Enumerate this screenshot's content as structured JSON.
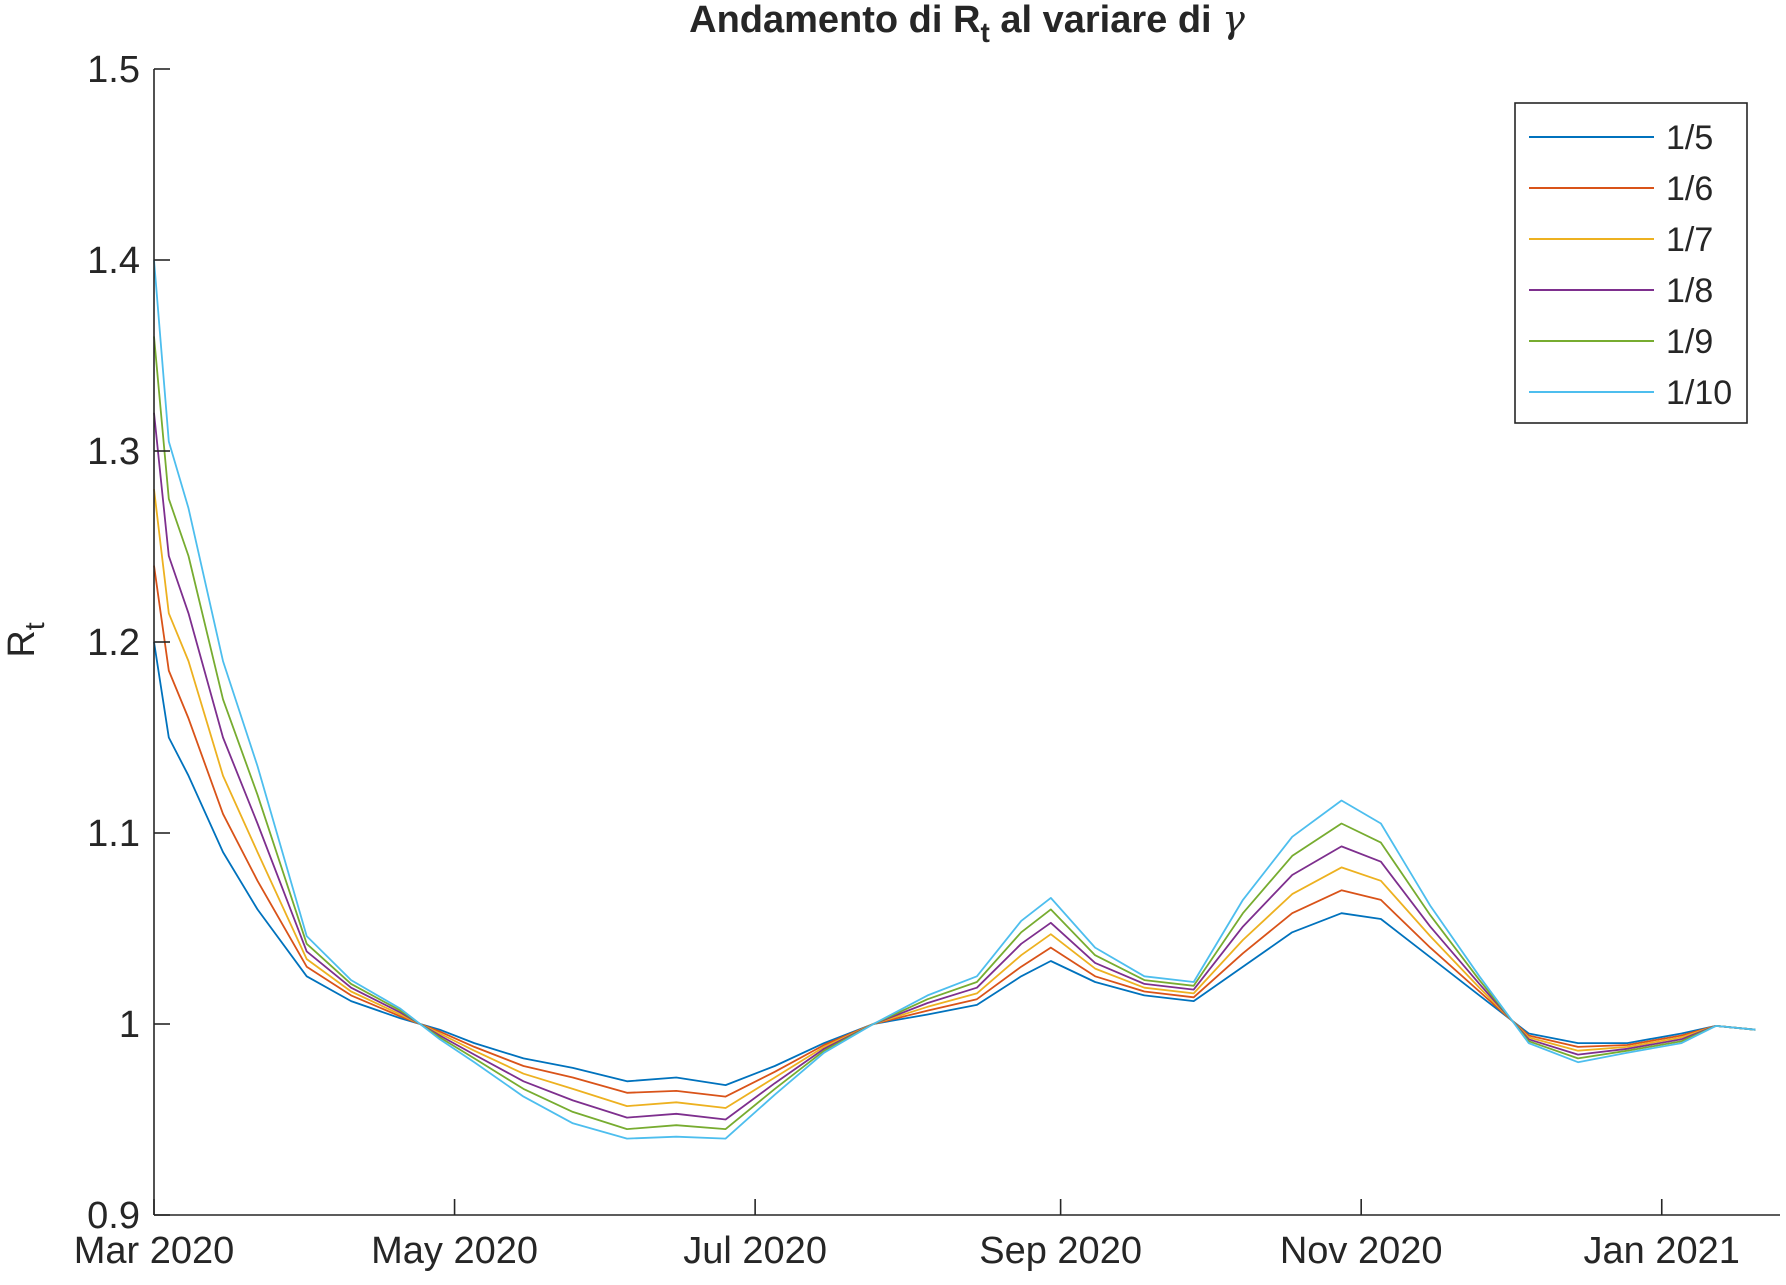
{
  "chart_data": {
    "type": "line",
    "title_main": "Andamento di R",
    "title_sub": "t",
    "title_rest": " al variare di ",
    "title_symbol": "γ",
    "ylabel_main": "R",
    "ylabel_sub": "t",
    "xlabel": "",
    "xlim": [
      "2020-03-01",
      "2021-01-25"
    ],
    "ylim": [
      0.9,
      1.5
    ],
    "grid": false,
    "legend_position": "top-right",
    "x_ticks": [
      {
        "date": "2020-03-01",
        "label": "Mar 2020"
      },
      {
        "date": "2020-05-01",
        "label": "May 2020"
      },
      {
        "date": "2020-07-01",
        "label": "Jul 2020"
      },
      {
        "date": "2020-09-01",
        "label": "Sep 2020"
      },
      {
        "date": "2020-11-01",
        "label": "Nov 2020"
      },
      {
        "date": "2021-01-01",
        "label": "Jan 2021"
      }
    ],
    "y_ticks": [
      {
        "value": 0.9,
        "label": "0.9"
      },
      {
        "value": 1.0,
        "label": "1"
      },
      {
        "value": 1.1,
        "label": "1.1"
      },
      {
        "value": 1.2,
        "label": "1.2"
      },
      {
        "value": 1.3,
        "label": "1.3"
      },
      {
        "value": 1.4,
        "label": "1.4"
      },
      {
        "value": 1.5,
        "label": "1.5"
      }
    ],
    "x": [
      "2020-03-01",
      "2020-03-04",
      "2020-03-08",
      "2020-03-15",
      "2020-03-22",
      "2020-04-01",
      "2020-04-10",
      "2020-04-20",
      "2020-04-28",
      "2020-05-05",
      "2020-05-15",
      "2020-05-25",
      "2020-06-05",
      "2020-06-15",
      "2020-06-25",
      "2020-07-05",
      "2020-07-15",
      "2020-07-25",
      "2020-08-05",
      "2020-08-15",
      "2020-08-24",
      "2020-08-30",
      "2020-09-08",
      "2020-09-18",
      "2020-09-28",
      "2020-10-08",
      "2020-10-18",
      "2020-10-28",
      "2020-11-05",
      "2020-11-15",
      "2020-11-25",
      "2020-12-05",
      "2020-12-15",
      "2020-12-25",
      "2021-01-05",
      "2021-01-12",
      "2021-01-20"
    ],
    "series": [
      {
        "name": "1/5",
        "color": "#0072BD",
        "values": [
          1.2,
          1.15,
          1.13,
          1.09,
          1.06,
          1.025,
          1.012,
          1.003,
          0.997,
          0.99,
          0.982,
          0.977,
          0.97,
          0.972,
          0.968,
          0.978,
          0.99,
          1.0,
          1.005,
          1.01,
          1.025,
          1.033,
          1.022,
          1.015,
          1.012,
          1.03,
          1.048,
          1.058,
          1.055,
          1.035,
          1.015,
          0.995,
          0.99,
          0.99,
          0.995,
          0.999,
          0.997
        ]
      },
      {
        "name": "1/6",
        "color": "#D95319",
        "values": [
          1.24,
          1.185,
          1.16,
          1.11,
          1.075,
          1.03,
          1.015,
          1.004,
          0.996,
          0.988,
          0.978,
          0.972,
          0.964,
          0.965,
          0.962,
          0.975,
          0.989,
          1.0,
          1.007,
          1.013,
          1.03,
          1.04,
          1.025,
          1.017,
          1.014,
          1.037,
          1.058,
          1.07,
          1.065,
          1.04,
          1.017,
          0.994,
          0.988,
          0.989,
          0.994,
          0.999,
          0.997
        ]
      },
      {
        "name": "1/7",
        "color": "#EDB120",
        "values": [
          1.28,
          1.215,
          1.19,
          1.13,
          1.09,
          1.034,
          1.017,
          1.005,
          0.995,
          0.986,
          0.974,
          0.966,
          0.957,
          0.959,
          0.956,
          0.972,
          0.988,
          1.0,
          1.009,
          1.016,
          1.036,
          1.047,
          1.029,
          1.019,
          1.016,
          1.044,
          1.068,
          1.082,
          1.075,
          1.046,
          1.019,
          0.993,
          0.986,
          0.988,
          0.993,
          0.999,
          0.997
        ]
      },
      {
        "name": "1/8",
        "color": "#7E2F8E",
        "values": [
          1.32,
          1.245,
          1.215,
          1.15,
          1.105,
          1.038,
          1.019,
          1.006,
          0.994,
          0.984,
          0.97,
          0.96,
          0.951,
          0.953,
          0.95,
          0.969,
          0.987,
          1.0,
          1.011,
          1.019,
          1.042,
          1.053,
          1.032,
          1.021,
          1.018,
          1.051,
          1.078,
          1.093,
          1.085,
          1.051,
          1.021,
          0.992,
          0.984,
          0.987,
          0.992,
          0.999,
          0.997
        ]
      },
      {
        "name": "1/9",
        "color": "#77AC30",
        "values": [
          1.36,
          1.275,
          1.245,
          1.17,
          1.12,
          1.042,
          1.021,
          1.007,
          0.993,
          0.982,
          0.966,
          0.954,
          0.945,
          0.947,
          0.945,
          0.966,
          0.986,
          1.0,
          1.013,
          1.022,
          1.048,
          1.06,
          1.036,
          1.023,
          1.02,
          1.058,
          1.088,
          1.105,
          1.095,
          1.057,
          1.023,
          0.991,
          0.982,
          0.986,
          0.991,
          0.999,
          0.997
        ]
      },
      {
        "name": "1/10",
        "color": "#4DBEEE",
        "values": [
          1.4,
          1.305,
          1.27,
          1.19,
          1.135,
          1.046,
          1.023,
          1.008,
          0.992,
          0.98,
          0.962,
          0.948,
          0.94,
          0.941,
          0.94,
          0.963,
          0.985,
          1.0,
          1.015,
          1.025,
          1.054,
          1.066,
          1.04,
          1.025,
          1.022,
          1.065,
          1.098,
          1.117,
          1.105,
          1.062,
          1.025,
          0.99,
          0.98,
          0.985,
          0.99,
          0.999,
          0.997
        ]
      }
    ]
  }
}
